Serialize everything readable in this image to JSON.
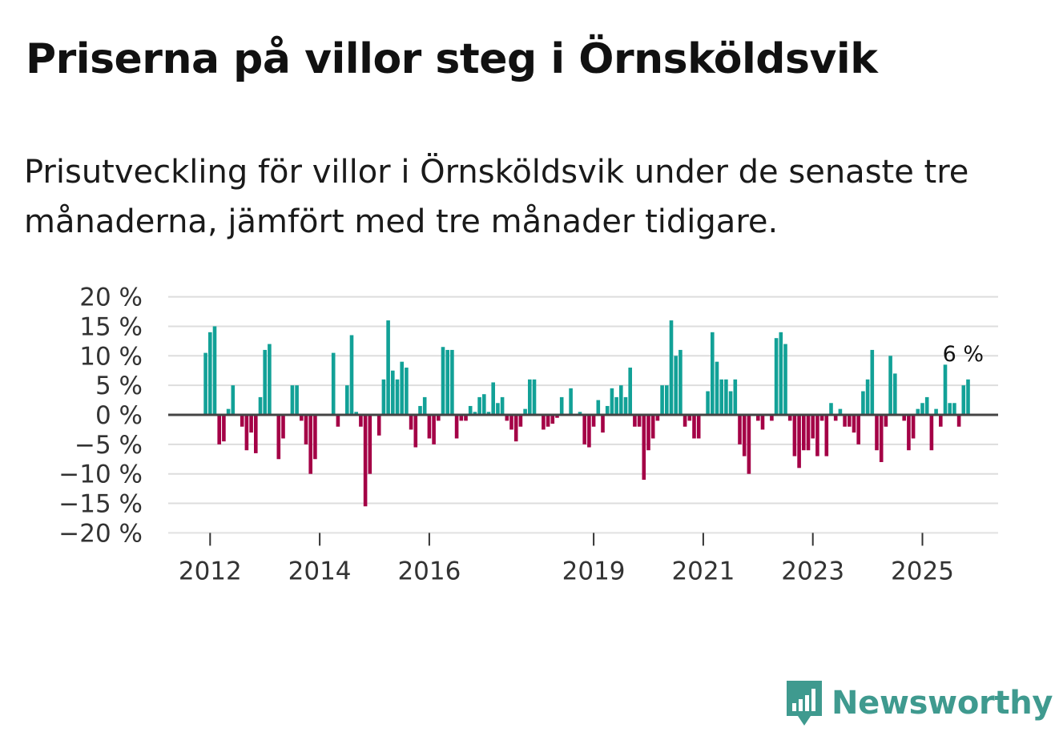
{
  "title": "Priserna på villor steg i Örnsköldsvik",
  "subtitle": "Prisutveckling för villor i Örnsköldsvik under de senaste tre månaderna, jämfört med tre månader tidigare.",
  "brand": {
    "name": "Newsworthy"
  },
  "colors": {
    "positive": "#12a197",
    "negative": "#a40046",
    "zero_line": "#444444",
    "grid": "#dddddd",
    "brand": "#3f9a8f"
  },
  "chart_data": {
    "type": "bar",
    "title": "Priserna på villor steg i Örnsköldsvik",
    "xlabel": "",
    "ylabel": "",
    "ylim": [
      -20,
      20
    ],
    "y_ticks": [
      20,
      15,
      10,
      5,
      0,
      -5,
      -10,
      -15,
      -20
    ],
    "y_tick_labels": [
      "20 %",
      "15 %",
      "10 %",
      "5 %",
      "0 %",
      "−5 %",
      "−10 %",
      "−15 %",
      "−20 %"
    ],
    "x_ticks": [
      {
        "label": "2012",
        "date": "2012-01"
      },
      {
        "label": "2014",
        "date": "2014-01"
      },
      {
        "label": "2016",
        "date": "2016-01"
      },
      {
        "label": "2019",
        "date": "2019-01"
      },
      {
        "label": "2021",
        "date": "2021-01"
      },
      {
        "label": "2023",
        "date": "2023-01"
      },
      {
        "label": "2025",
        "date": "2025-01"
      }
    ],
    "start": "2011-12",
    "annotation": {
      "label": "6 %",
      "date": "2025-05"
    },
    "values": [
      10.5,
      14,
      15,
      -5,
      -4.5,
      1,
      5,
      0,
      -2,
      -6,
      -3,
      -6.5,
      3,
      11,
      12,
      0,
      -7.5,
      -4,
      0,
      5,
      5,
      -1,
      -5,
      -10,
      -7.5,
      0,
      0,
      0,
      10.5,
      -2,
      0,
      5,
      13.5,
      0.5,
      -2,
      -15.5,
      -10,
      0,
      -3.5,
      6,
      16,
      7.5,
      6,
      9,
      8,
      -2.5,
      -5.5,
      1.5,
      3,
      -4,
      -5,
      -1,
      11.5,
      11,
      11,
      -4,
      -1,
      -1,
      1.5,
      0.5,
      3,
      3.5,
      0.5,
      5.5,
      2,
      3,
      -1,
      -2.5,
      -4.5,
      -2,
      1,
      6,
      6,
      0,
      -2.5,
      -2,
      -1.5,
      -0.5,
      3,
      0,
      4.5,
      0,
      0.5,
      -5,
      -5.5,
      -2,
      2.5,
      -3,
      1.5,
      4.5,
      3,
      5,
      3,
      8,
      -2,
      -2,
      -11,
      -6,
      -4,
      -1,
      5,
      5,
      16,
      10,
      11,
      -2,
      -1,
      -4,
      -4,
      0,
      4,
      14,
      9,
      6,
      6,
      4,
      6,
      -5,
      -7,
      -10,
      0,
      -1,
      -2.5,
      0,
      -1,
      13,
      14,
      12,
      -1,
      -7,
      -9,
      -6,
      -6,
      -4,
      -7,
      -1,
      -7,
      2,
      -1,
      1,
      -2,
      -2,
      -3,
      -5,
      4,
      6,
      11,
      -6,
      -8,
      -2,
      10,
      7,
      0,
      -1,
      -6,
      -4,
      1,
      2,
      3,
      -6,
      1,
      -2,
      8.5,
      2,
      2,
      -2,
      5,
      6
    ]
  }
}
